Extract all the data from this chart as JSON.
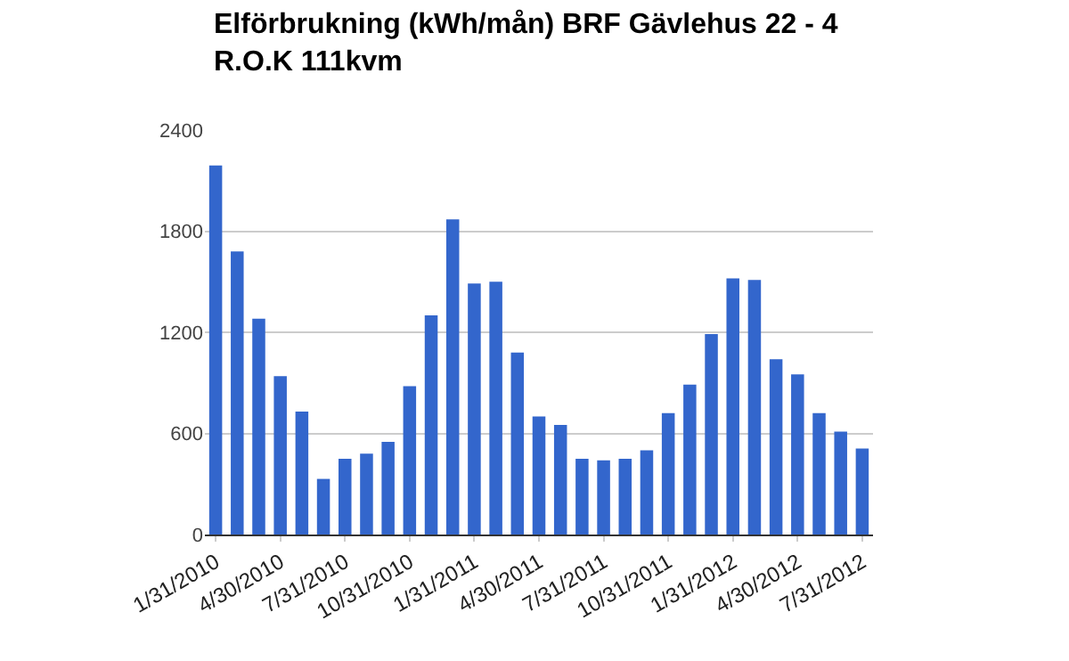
{
  "chart_data": {
    "type": "bar",
    "title": "Elförbrukning (kWh/mån) BRF Gävlehus 22 - 4\nR.O.K 111kvm",
    "categories": [
      "1/31/2010",
      null,
      null,
      "4/30/2010",
      null,
      null,
      "7/31/2010",
      null,
      null,
      "10/31/2010",
      null,
      null,
      "1/31/2011",
      null,
      null,
      "4/30/2011",
      null,
      null,
      "7/31/2011",
      null,
      null,
      "10/31/2011",
      null,
      null,
      "1/31/2012",
      null,
      null,
      "4/30/2012",
      null,
      null,
      "7/31/2012"
    ],
    "series": [
      {
        "color": "#3366cc",
        "values": [
          2190,
          1680,
          1280,
          940,
          730,
          330,
          450,
          480,
          550,
          880,
          1300,
          1870,
          1490,
          1500,
          1080,
          700,
          650,
          450,
          440,
          450,
          500,
          720,
          890,
          1190,
          1520,
          1510,
          1040,
          950,
          720,
          610,
          510
        ]
      }
    ],
    "ylim": [
      0,
      2400
    ],
    "yticks": [
      0,
      600,
      1200,
      1800,
      2400
    ],
    "grid": "y"
  }
}
